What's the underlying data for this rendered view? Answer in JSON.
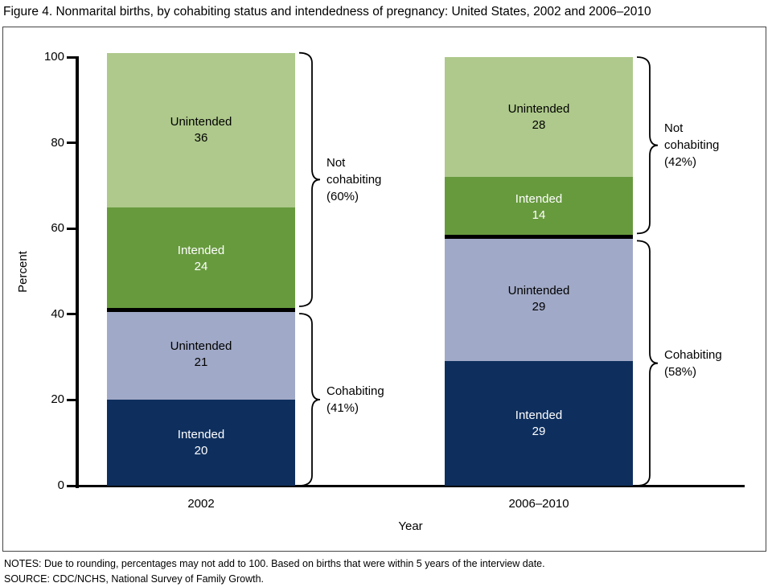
{
  "figure": {
    "title": "Figure 4. Nonmarital births, by cohabiting status and intendedness of pregnancy: United States, 2002 and 2006–2010",
    "notes": "NOTES: Due to rounding, percentages may not add to 100. Based on births that were within 5 years of the interview date.",
    "source": "SOURCE: CDC/NCHS, National Survey of Family Growth."
  },
  "chart_data": {
    "type": "bar",
    "stacked": true,
    "title": "Figure 4. Nonmarital births, by cohabiting status and intendedness of pregnancy: United States, 2002 and 2006–2010",
    "xlabel": "Year",
    "ylabel": "Percent",
    "ylim": [
      0,
      100
    ],
    "y_ticks": [
      0,
      20,
      40,
      60,
      80,
      100
    ],
    "grid": false,
    "legend": "none",
    "categories": [
      "2002",
      "2006–2010"
    ],
    "series": [
      {
        "name": "cohabiting-intended",
        "label": "Intended",
        "values": [
          20,
          29
        ],
        "color": "#0e2f5e",
        "text_color": "#ffffff"
      },
      {
        "name": "cohabiting-unintended",
        "label": "Unintended",
        "values": [
          21,
          29
        ],
        "color": "#a0a9c7",
        "text_color": "#000000"
      },
      {
        "name": "not-cohabiting-intended",
        "label": "Intended",
        "values": [
          24,
          14
        ],
        "color": "#679a3d",
        "text_color": "#ffffff"
      },
      {
        "name": "not-cohabiting-unintended",
        "label": "Unintended",
        "values": [
          36,
          28
        ],
        "color": "#aec98b",
        "text_color": "#000000"
      }
    ],
    "divider_after_series_index": 1,
    "divider_color": "#000000",
    "braces": [
      {
        "category_index": 0,
        "lines": [
          "Not",
          "cohabiting",
          "(60%)"
        ],
        "from_pct": 41,
        "to_pct": 101,
        "position": "upper"
      },
      {
        "category_index": 0,
        "lines": [
          "Cohabiting",
          "(41%)"
        ],
        "from_pct": 0,
        "to_pct": 41,
        "position": "lower"
      },
      {
        "category_index": 1,
        "lines": [
          "Not",
          "cohabiting",
          "(42%)"
        ],
        "from_pct": 58,
        "to_pct": 100,
        "position": "upper"
      },
      {
        "category_index": 1,
        "lines": [
          "Cohabiting",
          "(58%)"
        ],
        "from_pct": 0,
        "to_pct": 58,
        "position": "lower"
      }
    ]
  }
}
